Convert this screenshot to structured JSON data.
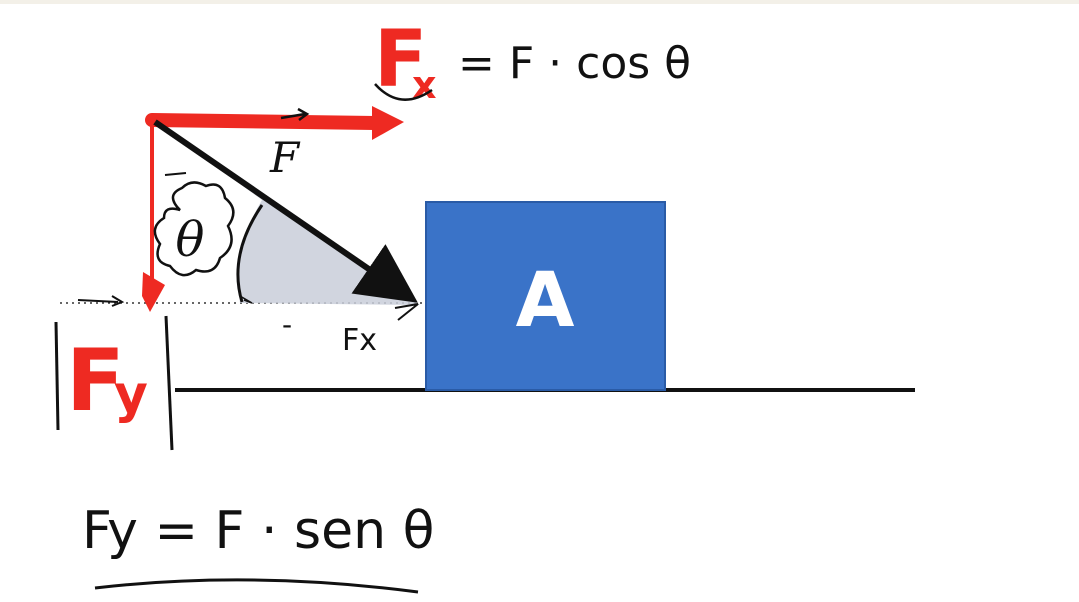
{
  "diagram": {
    "block_label": "A",
    "force_label": "F",
    "angle_label": "θ",
    "fx_label": "F",
    "fx_subscript": "x",
    "fx_equation": "= F · cos θ",
    "fy_label": "F",
    "fy_subscript": "y",
    "fy_equation": "Fy = F · sen θ",
    "small_fx_label": "Fx",
    "minus_sign": "-",
    "colors": {
      "annotation_red": "#ee2a22",
      "block_blue": "#3a73c8",
      "angle_fill": "#c9ced9",
      "ink": "#111111"
    }
  }
}
